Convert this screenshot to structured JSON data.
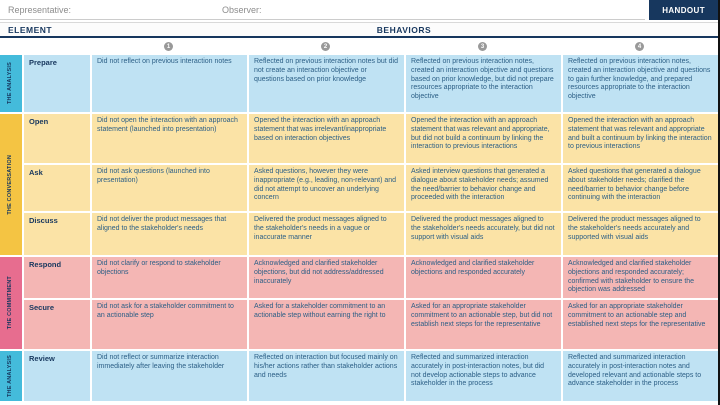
{
  "page": {
    "badge": "HANDOUT",
    "representative_label": "Representative:",
    "observer_label": "Observer:",
    "element_header": "ELEMENT",
    "behaviors_header": "BEHAVIORS",
    "rating_levels": [
      "1",
      "2",
      "3",
      "4"
    ]
  },
  "colors": {
    "badge_bg": "#17375e",
    "header_navy": "#17375e",
    "analysis_sidebar": "#44bbdb",
    "analysis_row_bg": "#bfe2f3",
    "conversation_sidebar": "#f4c443",
    "conversation_row_bg": "#fbe3a6",
    "commitment_sidebar": "#e76d8f",
    "commitment_row_bg": "#f4b6b4",
    "body_text": "#2c5f86",
    "circle_gray": "#999999"
  },
  "sections": [
    {
      "label": "THE ANALYSIS",
      "rows": [
        {
          "element": "Prepare",
          "cells": [
            "Did not reflect on previous interaction notes",
            "Reflected on previous interaction notes but did not create an interaction objective or questions based on prior knowledge",
            "Reflected on previous interaction notes, created an interaction objective and questions based on prior knowledge, but did not prepare resources appropriate to the interaction objective",
            "Reflected on previous interaction notes, created an interaction objective and questions to gain further knowledge, and prepared resources appropriate to the interaction objective"
          ]
        }
      ]
    },
    {
      "label": "THE CONVERSATION",
      "rows": [
        {
          "element": "Open",
          "cells": [
            "Did not open the interaction with an approach statement (launched into presentation)",
            "Opened the interaction with an approach statement that was irrelevant/inappropriate based on interaction objectives",
            "Opened the interaction with an approach statement that was relevant and appropriate, but did not build a continuum by linking the interaction to previous interactions",
            "Opened the interaction with an approach statement that was relevant and appropriate and built a continuum by linking the interaction to previous interactions"
          ]
        },
        {
          "element": "Ask",
          "cells": [
            "Did not ask questions (launched into presentation)",
            "Asked questions, however they were inappropriate (e.g., leading, non-relevant) and did not attempt to uncover an underlying concern",
            "Asked interview questions that generated a dialogue about stakeholder needs; assumed the need/barrier to behavior change and proceeded with the interaction",
            "Asked questions that generated a dialogue about stakeholder needs; clarified the need/barrier to behavior change before continuing with the interaction"
          ]
        },
        {
          "element": "Discuss",
          "cells": [
            "Did not deliver the product messages that aligned to the stakeholder's needs",
            "Delivered the product messages aligned to the stakeholder's needs in a vague or inaccurate manner",
            "Delivered the product messages aligned to the stakeholder's needs accurately, but did not support with visual aids",
            "Delivered the product messages aligned to the stakeholder's needs accurately and supported with visual aids"
          ]
        }
      ]
    },
    {
      "label": "THE COMMITMENT",
      "rows": [
        {
          "element": "Respond",
          "cells": [
            "Did not clarify or respond to stakeholder objections",
            "Acknowledged and clarified stakeholder objections, but did not address/addressed inaccurately",
            "Acknowledged and clarified stakeholder objections and responded accurately",
            "Acknowledged and clarified stakeholder objections and responded accurately; confirmed with stakeholder to ensure the objection was addressed"
          ]
        },
        {
          "element": "Secure",
          "cells": [
            "Did not ask for a stakeholder commitment to an actionable step",
            "Asked for a stakeholder commitment to an actionable step without earning the right to",
            "Asked for an appropriate stakeholder commitment to an actionable step, but did not establish next steps for the representative",
            "Asked for an appropriate stakeholder commitment to an actionable step and established next steps for the representative"
          ]
        }
      ]
    },
    {
      "label": "THE ANALYSIS",
      "rows": [
        {
          "element": "Review",
          "cells": [
            "Did not reflect or summarize interaction immediately after leaving the stakeholder",
            "Reflected on interaction but focused mainly on his/her actions rather than stakeholder actions and needs",
            "Reflected and summarized interaction accurately in post-interaction notes, but did not develop actionable steps to advance stakeholder in the process",
            "Reflected and summarized interaction accurately in post-interaction notes and developed relevant and actionable steps to advance stakeholder in the process"
          ]
        }
      ]
    }
  ]
}
